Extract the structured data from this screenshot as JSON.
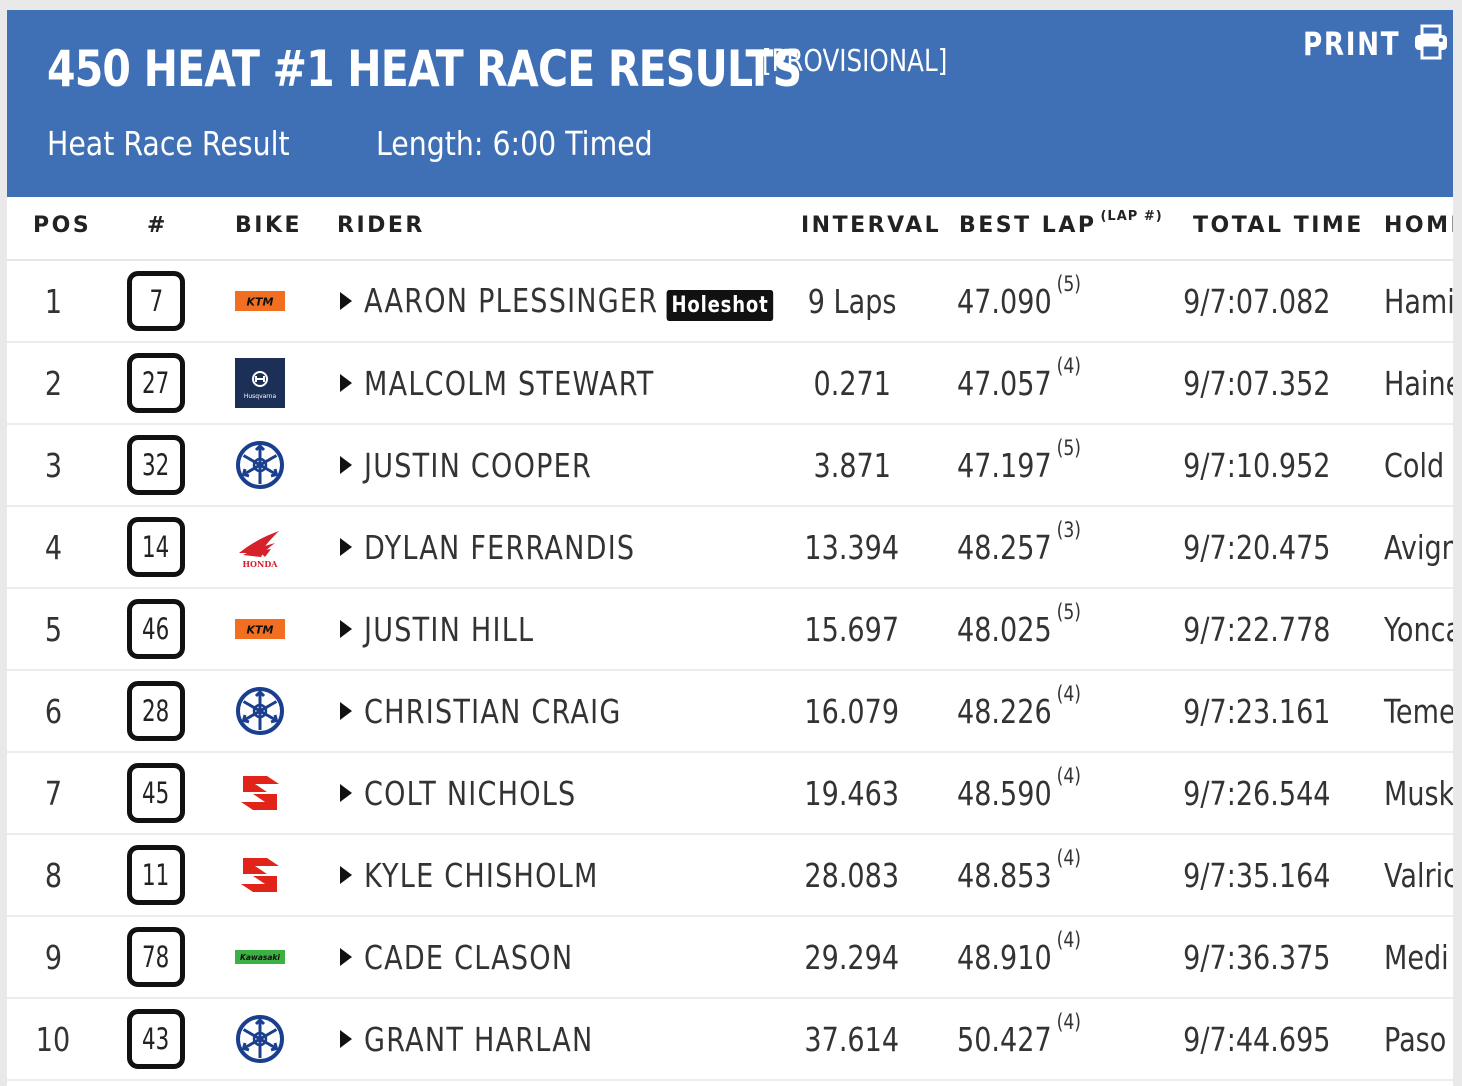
{
  "header": {
    "title": "450 HEAT #1 HEAT RACE RESULTS",
    "status": "[PROVISIONAL]",
    "result_type": "Heat Race Result",
    "length": "Length: 6:00 Timed",
    "print_label": "PRINT"
  },
  "columns": {
    "pos": "POS",
    "number": "#",
    "bike": "BIKE",
    "rider": "RIDER",
    "interval": "INTERVAL",
    "best_lap": "BEST LAP",
    "best_lap_sup": "(LAP #)",
    "total_time": "TOTAL TIME",
    "hometown": "HOMET"
  },
  "rows": [
    {
      "pos": "1",
      "number": "7",
      "bike": "ktm",
      "rider": "AARON PLESSINGER",
      "badge": "Holeshot",
      "interval": "9 Laps",
      "best_lap": "47.090",
      "best_lap_num": "(5)",
      "total": "9/7:07.082",
      "hometown": "Hami"
    },
    {
      "pos": "2",
      "number": "27",
      "bike": "husqvarna",
      "rider": "MALCOLM STEWART",
      "badge": "",
      "interval": "0.271",
      "best_lap": "47.057",
      "best_lap_num": "(4)",
      "total": "9/7:07.352",
      "hometown": "Haine"
    },
    {
      "pos": "3",
      "number": "32",
      "bike": "yamaha",
      "rider": "JUSTIN COOPER",
      "badge": "",
      "interval": "3.871",
      "best_lap": "47.197",
      "best_lap_num": "(5)",
      "total": "9/7:10.952",
      "hometown": "Cold"
    },
    {
      "pos": "4",
      "number": "14",
      "bike": "honda",
      "rider": "DYLAN FERRANDIS",
      "badge": "",
      "interval": "13.394",
      "best_lap": "48.257",
      "best_lap_num": "(3)",
      "total": "9/7:20.475",
      "hometown": "Avign"
    },
    {
      "pos": "5",
      "number": "46",
      "bike": "ktm",
      "rider": "JUSTIN HILL",
      "badge": "",
      "interval": "15.697",
      "best_lap": "48.025",
      "best_lap_num": "(5)",
      "total": "9/7:22.778",
      "hometown": "Yonca"
    },
    {
      "pos": "6",
      "number": "28",
      "bike": "yamaha",
      "rider": "CHRISTIAN CRAIG",
      "badge": "",
      "interval": "16.079",
      "best_lap": "48.226",
      "best_lap_num": "(4)",
      "total": "9/7:23.161",
      "hometown": "Teme"
    },
    {
      "pos": "7",
      "number": "45",
      "bike": "suzuki",
      "rider": "COLT NICHOLS",
      "badge": "",
      "interval": "19.463",
      "best_lap": "48.590",
      "best_lap_num": "(4)",
      "total": "9/7:26.544",
      "hometown": "Musk"
    },
    {
      "pos": "8",
      "number": "11",
      "bike": "suzuki",
      "rider": "KYLE CHISHOLM",
      "badge": "",
      "interval": "28.083",
      "best_lap": "48.853",
      "best_lap_num": "(4)",
      "total": "9/7:35.164",
      "hometown": "Valric"
    },
    {
      "pos": "9",
      "number": "78",
      "bike": "kawasaki",
      "rider": "CADE CLASON",
      "badge": "",
      "interval": "29.294",
      "best_lap": "48.910",
      "best_lap_num": "(4)",
      "total": "9/7:36.375",
      "hometown": "Medi"
    },
    {
      "pos": "10",
      "number": "43",
      "bike": "yamaha",
      "rider": "GRANT HARLAN",
      "badge": "",
      "interval": "37.614",
      "best_lap": "50.427",
      "best_lap_num": "(4)",
      "total": "9/7:44.695",
      "hometown": "Paso"
    }
  ],
  "logo_text": {
    "ktm": "KTM",
    "husqvarna": "Husqvarna",
    "honda": "HONDA",
    "kawasaki": "Kawasaki"
  },
  "colors": {
    "header_bg": "#3f6fb5",
    "ktm": "#f26f21",
    "husqvarna": "#1b2f57",
    "yamaha": "#1a3f8f",
    "honda": "#d6202a",
    "suzuki": "#e2231a",
    "kawasaki": "#3cb043"
  }
}
